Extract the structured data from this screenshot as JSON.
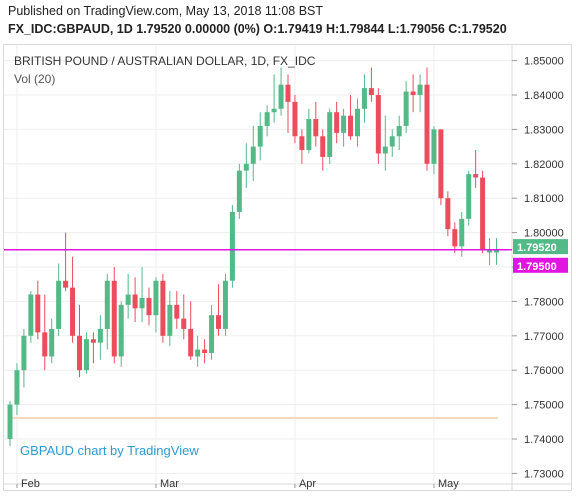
{
  "header": {
    "line1": "Published on TradingView.com, May 13, 2018 11:08 BST",
    "line2": "FX_IDC:GBPAUD, 1D 1.79520 0.00000 (0%) O:1.79419 H:1.79844 L:1.79056 C:1.79520"
  },
  "chart_data": {
    "type": "candlestick",
    "title": "BRITISH POUND / AUSTRALIAN DOLLAR, 1D, FX_IDC",
    "indicator": "Vol (20)",
    "watermark": "GBPAUD chart by TradingView",
    "ylim": [
      1.7275,
      1.8525
    ],
    "y_ticks": [
      "1.85000",
      "1.84000",
      "1.83000",
      "1.82000",
      "1.81000",
      "1.80000",
      "1.79000",
      "1.78000",
      "1.77000",
      "1.76000",
      "1.75000",
      "1.74000",
      "1.73000"
    ],
    "x_tick_labels": [
      {
        "label": "Feb",
        "index": 1
      },
      {
        "label": "Mar",
        "index": 21
      },
      {
        "label": "Apr",
        "index": 41
      },
      {
        "label": "May",
        "index": 61
      }
    ],
    "last_price": {
      "value": 1.7952,
      "label": "1.79520"
    },
    "horizontal_line": {
      "value": 1.795,
      "label": "1.79500"
    },
    "colors": {
      "up": "#53b987",
      "down": "#eb4d5c",
      "line": "#e015e0",
      "vol_line": "#f5d9bf",
      "grid": "#eeeeee"
    },
    "candles": [
      {
        "o": 1.74,
        "h": 1.751,
        "l": 1.738,
        "c": 1.75
      },
      {
        "o": 1.75,
        "h": 1.762,
        "l": 1.747,
        "c": 1.76
      },
      {
        "o": 1.76,
        "h": 1.772,
        "l": 1.755,
        "c": 1.77
      },
      {
        "o": 1.77,
        "h": 1.783,
        "l": 1.768,
        "c": 1.782
      },
      {
        "o": 1.782,
        "h": 1.786,
        "l": 1.769,
        "c": 1.771
      },
      {
        "o": 1.771,
        "h": 1.782,
        "l": 1.76,
        "c": 1.764
      },
      {
        "o": 1.764,
        "h": 1.775,
        "l": 1.762,
        "c": 1.772
      },
      {
        "o": 1.772,
        "h": 1.791,
        "l": 1.77,
        "c": 1.786
      },
      {
        "o": 1.786,
        "h": 1.8,
        "l": 1.783,
        "c": 1.784
      },
      {
        "o": 1.784,
        "h": 1.793,
        "l": 1.768,
        "c": 1.77
      },
      {
        "o": 1.77,
        "h": 1.779,
        "l": 1.758,
        "c": 1.76
      },
      {
        "o": 1.76,
        "h": 1.771,
        "l": 1.759,
        "c": 1.769
      },
      {
        "o": 1.769,
        "h": 1.771,
        "l": 1.762,
        "c": 1.768
      },
      {
        "o": 1.768,
        "h": 1.776,
        "l": 1.763,
        "c": 1.772
      },
      {
        "o": 1.772,
        "h": 1.788,
        "l": 1.766,
        "c": 1.786
      },
      {
        "o": 1.786,
        "h": 1.79,
        "l": 1.762,
        "c": 1.764
      },
      {
        "o": 1.764,
        "h": 1.78,
        "l": 1.761,
        "c": 1.779
      },
      {
        "o": 1.779,
        "h": 1.788,
        "l": 1.775,
        "c": 1.782
      },
      {
        "o": 1.782,
        "h": 1.787,
        "l": 1.774,
        "c": 1.778
      },
      {
        "o": 1.778,
        "h": 1.79,
        "l": 1.774,
        "c": 1.781
      },
      {
        "o": 1.781,
        "h": 1.784,
        "l": 1.773,
        "c": 1.776
      },
      {
        "o": 1.776,
        "h": 1.787,
        "l": 1.771,
        "c": 1.786
      },
      {
        "o": 1.786,
        "h": 1.788,
        "l": 1.768,
        "c": 1.77
      },
      {
        "o": 1.77,
        "h": 1.783,
        "l": 1.767,
        "c": 1.779
      },
      {
        "o": 1.779,
        "h": 1.783,
        "l": 1.772,
        "c": 1.775
      },
      {
        "o": 1.775,
        "h": 1.782,
        "l": 1.769,
        "c": 1.772
      },
      {
        "o": 1.772,
        "h": 1.78,
        "l": 1.763,
        "c": 1.764
      },
      {
        "o": 1.764,
        "h": 1.77,
        "l": 1.761,
        "c": 1.766
      },
      {
        "o": 1.766,
        "h": 1.769,
        "l": 1.762,
        "c": 1.765
      },
      {
        "o": 1.765,
        "h": 1.779,
        "l": 1.763,
        "c": 1.776
      },
      {
        "o": 1.776,
        "h": 1.785,
        "l": 1.77,
        "c": 1.772
      },
      {
        "o": 1.772,
        "h": 1.788,
        "l": 1.77,
        "c": 1.786
      },
      {
        "o": 1.786,
        "h": 1.808,
        "l": 1.784,
        "c": 1.806
      },
      {
        "o": 1.806,
        "h": 1.82,
        "l": 1.804,
        "c": 1.818
      },
      {
        "o": 1.818,
        "h": 1.826,
        "l": 1.813,
        "c": 1.82
      },
      {
        "o": 1.82,
        "h": 1.831,
        "l": 1.815,
        "c": 1.825
      },
      {
        "o": 1.825,
        "h": 1.835,
        "l": 1.821,
        "c": 1.831
      },
      {
        "o": 1.831,
        "h": 1.837,
        "l": 1.828,
        "c": 1.835
      },
      {
        "o": 1.835,
        "h": 1.846,
        "l": 1.832,
        "c": 1.836
      },
      {
        "o": 1.836,
        "h": 1.848,
        "l": 1.834,
        "c": 1.843
      },
      {
        "o": 1.843,
        "h": 1.846,
        "l": 1.829,
        "c": 1.838
      },
      {
        "o": 1.838,
        "h": 1.84,
        "l": 1.826,
        "c": 1.828
      },
      {
        "o": 1.828,
        "h": 1.83,
        "l": 1.82,
        "c": 1.824
      },
      {
        "o": 1.824,
        "h": 1.836,
        "l": 1.823,
        "c": 1.833
      },
      {
        "o": 1.833,
        "h": 1.838,
        "l": 1.825,
        "c": 1.828
      },
      {
        "o": 1.828,
        "h": 1.83,
        "l": 1.818,
        "c": 1.822
      },
      {
        "o": 1.822,
        "h": 1.836,
        "l": 1.82,
        "c": 1.835
      },
      {
        "o": 1.835,
        "h": 1.838,
        "l": 1.826,
        "c": 1.829
      },
      {
        "o": 1.829,
        "h": 1.836,
        "l": 1.825,
        "c": 1.834
      },
      {
        "o": 1.834,
        "h": 1.84,
        "l": 1.827,
        "c": 1.828
      },
      {
        "o": 1.828,
        "h": 1.839,
        "l": 1.825,
        "c": 1.836
      },
      {
        "o": 1.836,
        "h": 1.846,
        "l": 1.832,
        "c": 1.842
      },
      {
        "o": 1.842,
        "h": 1.848,
        "l": 1.838,
        "c": 1.84
      },
      {
        "o": 1.84,
        "h": 1.842,
        "l": 1.82,
        "c": 1.823
      },
      {
        "o": 1.823,
        "h": 1.834,
        "l": 1.818,
        "c": 1.825
      },
      {
        "o": 1.825,
        "h": 1.83,
        "l": 1.822,
        "c": 1.828
      },
      {
        "o": 1.828,
        "h": 1.834,
        "l": 1.824,
        "c": 1.831
      },
      {
        "o": 1.831,
        "h": 1.844,
        "l": 1.829,
        "c": 1.841
      },
      {
        "o": 1.841,
        "h": 1.846,
        "l": 1.835,
        "c": 1.84
      },
      {
        "o": 1.84,
        "h": 1.846,
        "l": 1.835,
        "c": 1.843
      },
      {
        "o": 1.843,
        "h": 1.848,
        "l": 1.818,
        "c": 1.82
      },
      {
        "o": 1.82,
        "h": 1.831,
        "l": 1.817,
        "c": 1.83
      },
      {
        "o": 1.83,
        "h": 1.83,
        "l": 1.808,
        "c": 1.81
      },
      {
        "o": 1.81,
        "h": 1.812,
        "l": 1.799,
        "c": 1.801
      },
      {
        "o": 1.801,
        "h": 1.803,
        "l": 1.794,
        "c": 1.796
      },
      {
        "o": 1.796,
        "h": 1.806,
        "l": 1.793,
        "c": 1.804
      },
      {
        "o": 1.804,
        "h": 1.818,
        "l": 1.802,
        "c": 1.817
      },
      {
        "o": 1.817,
        "h": 1.824,
        "l": 1.813,
        "c": 1.816
      },
      {
        "o": 1.816,
        "h": 1.818,
        "l": 1.794,
        "c": 1.795
      },
      {
        "o": 1.7942,
        "h": 1.7984,
        "l": 1.7906,
        "c": 1.7952
      },
      {
        "o": 1.7942,
        "h": 1.7984,
        "l": 1.7906,
        "c": 1.7952
      }
    ]
  }
}
